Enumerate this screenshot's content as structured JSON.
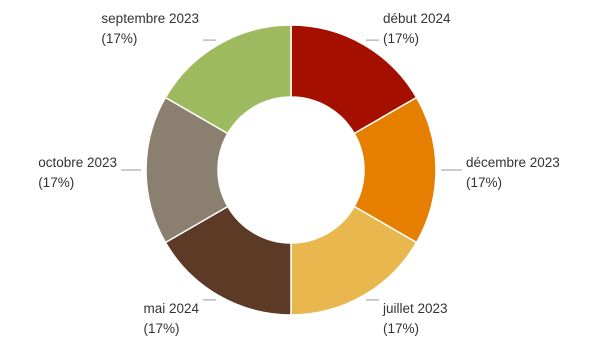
{
  "chart_data": {
    "type": "pie",
    "donut": true,
    "legend": "none",
    "slices": [
      {
        "label": "début 2024",
        "value": 1,
        "percent_label": "(17%)",
        "color": "#a50f00"
      },
      {
        "label": "décembre 2023",
        "value": 1,
        "percent_label": "(17%)",
        "color": "#e67e00"
      },
      {
        "label": "juillet 2023",
        "value": 1,
        "percent_label": "(17%)",
        "color": "#e8b84e"
      },
      {
        "label": "mai 2024",
        "value": 1,
        "percent_label": "(17%)",
        "color": "#5c3a26"
      },
      {
        "label": "octobre 2023",
        "value": 1,
        "percent_label": "(17%)",
        "color": "#8b7f70"
      },
      {
        "label": "septembre 2023",
        "value": 1,
        "percent_label": "(17%)",
        "color": "#9dbb5e"
      }
    ]
  }
}
